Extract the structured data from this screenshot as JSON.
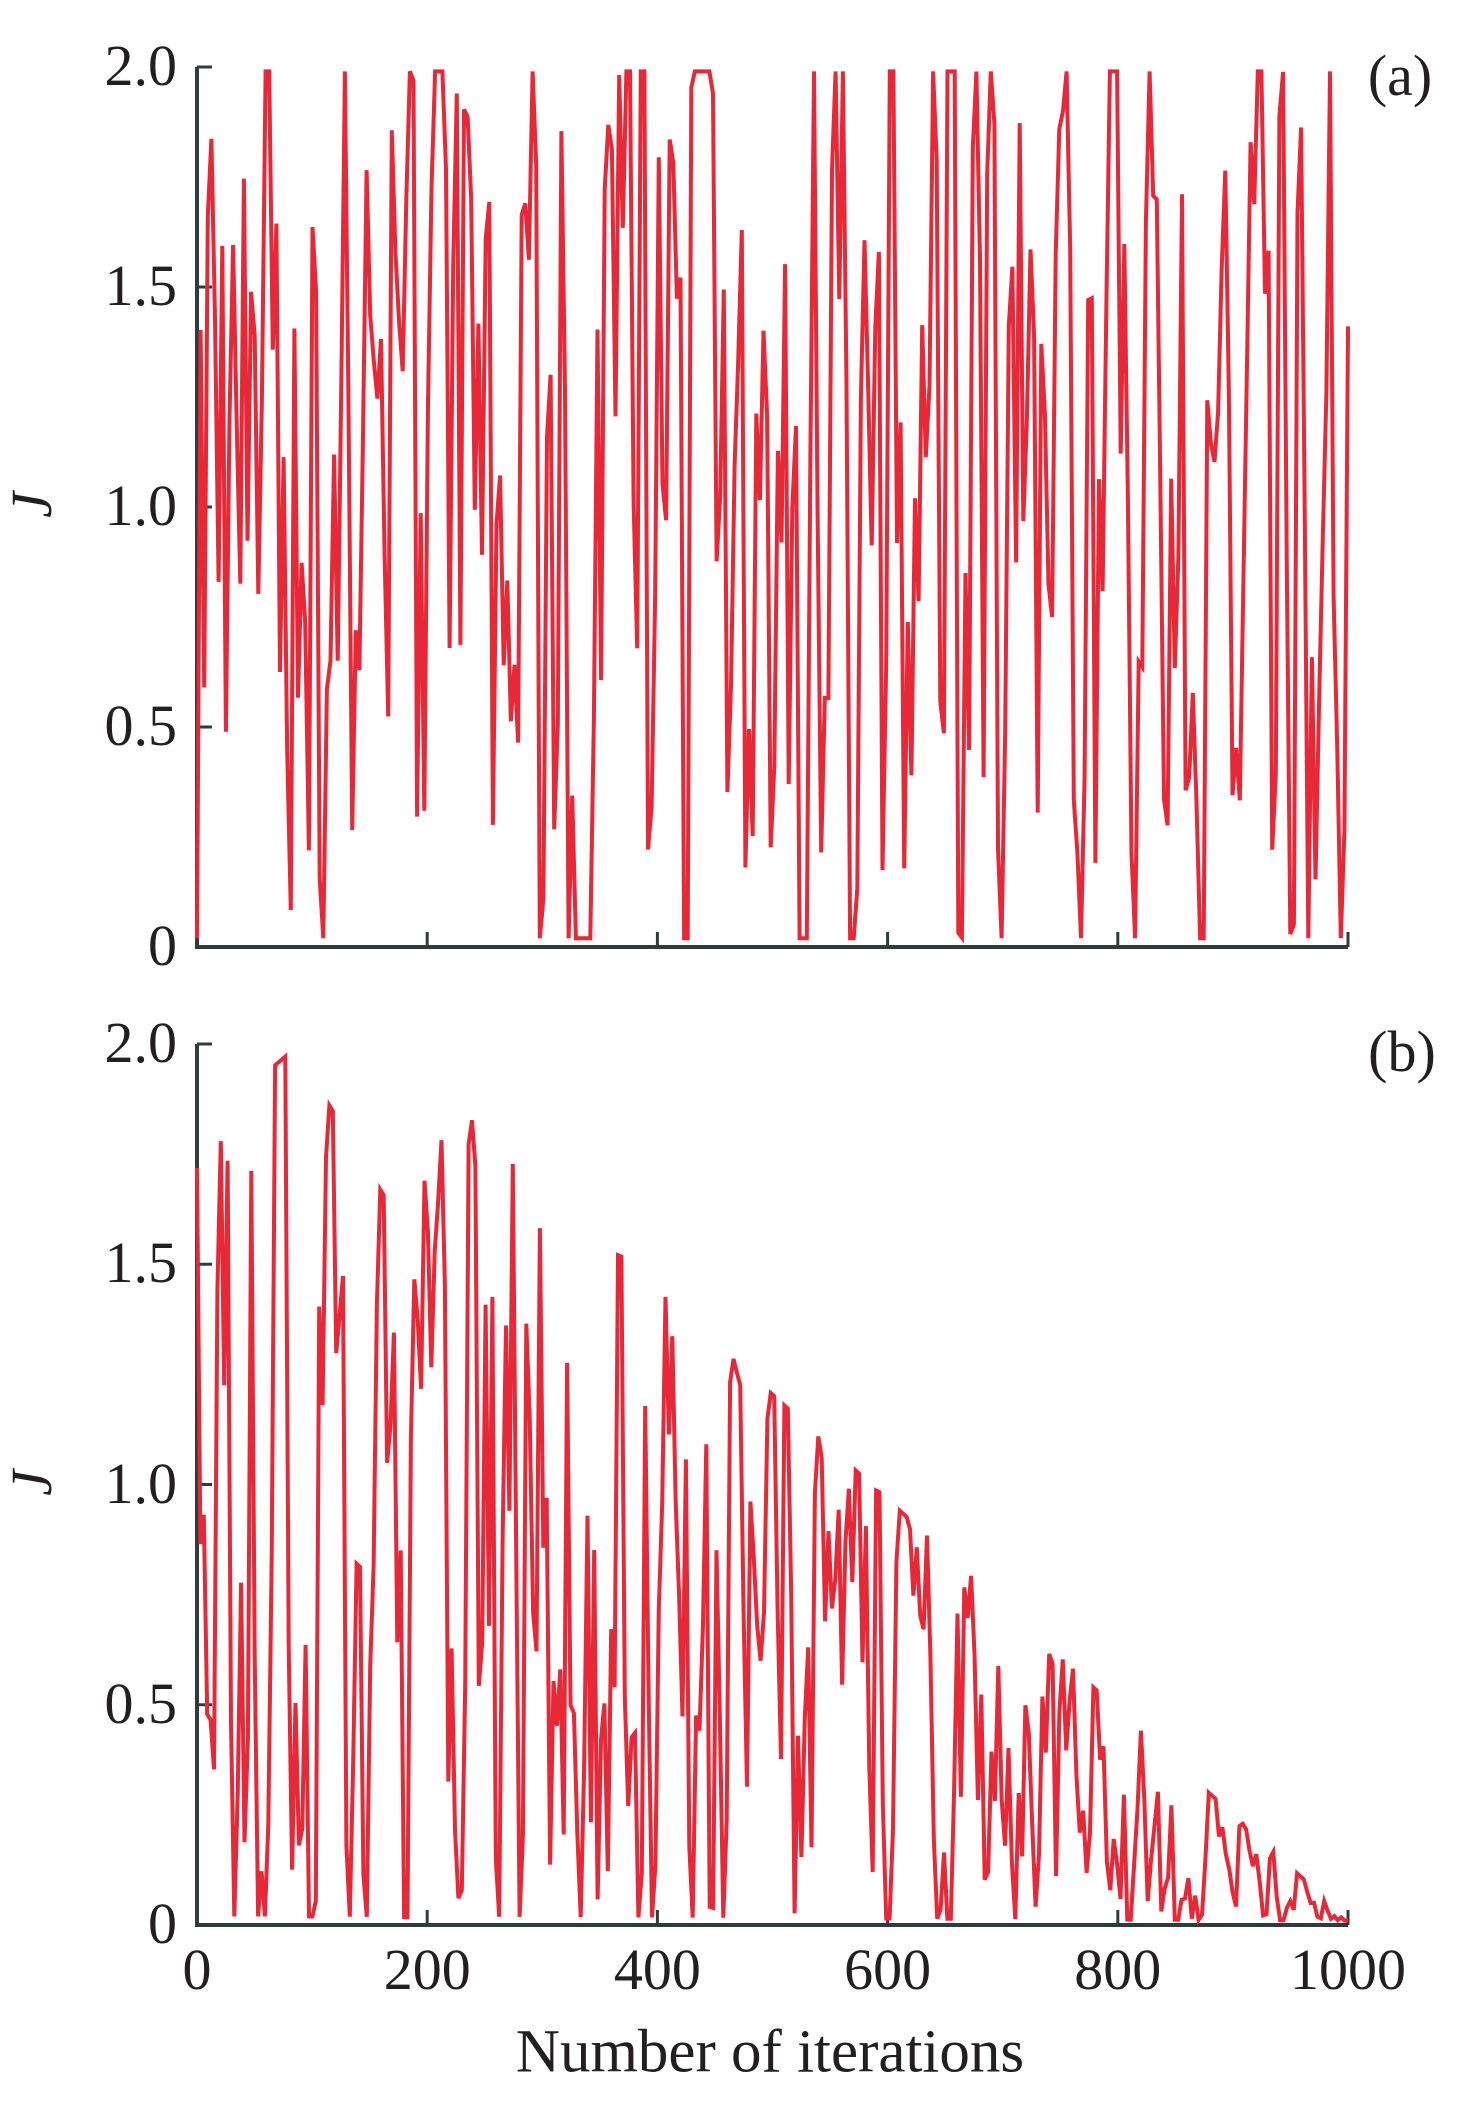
{
  "colors": {
    "line": "#e82737",
    "axis": "#2f3b3e",
    "text": "#231f20",
    "background": "#ffffff"
  },
  "figure": {
    "xlabel": "Number of iterations",
    "panels": [
      {
        "label": "(a)",
        "ylabel": "J"
      },
      {
        "label": "(b)",
        "ylabel": "J"
      }
    ]
  },
  "chart_data": [
    {
      "type": "line",
      "panel": "(a)",
      "title": "",
      "xlabel": "",
      "ylabel": "J",
      "xlim": [
        0,
        1000
      ],
      "ylim": [
        0,
        2.0
      ],
      "x_ticks": [
        0,
        200,
        400,
        600,
        800,
        1000
      ],
      "x_tick_labels": [],
      "y_ticks": [
        2.0,
        1.5,
        1.0,
        0.5,
        0
      ],
      "y_tick_labels": [
        "2.0",
        "1.5",
        "1.0",
        "0.5",
        "0"
      ],
      "grid": false,
      "legend": false,
      "n_points": 1000,
      "description": "Cost J oscillates randomly and uniformly over the full range 0 to 2 for all 1000 iterations with no convergence trend.",
      "series": [
        {
          "name": "J",
          "color": "#e82737",
          "envelope": {
            "type": "piecewise-linear",
            "breakpoints": [
              [
                0,
                1.99
              ],
              [
                1000,
                1.99
              ]
            ],
            "min": 0.01
          },
          "generator": {
            "prng": "mulberry32",
            "seed": 9,
            "points_rendered": 320,
            "smooth": 0.35,
            "contrast": 1.8
          }
        }
      ]
    },
    {
      "type": "line",
      "panel": "(b)",
      "title": "",
      "xlabel": "Number of iterations",
      "ylabel": "J",
      "xlim": [
        0,
        1000
      ],
      "ylim": [
        0,
        2.0
      ],
      "x_ticks": [
        0,
        200,
        400,
        600,
        800,
        1000
      ],
      "x_tick_labels": [
        "0",
        "200",
        "400",
        "600",
        "800",
        "1000"
      ],
      "y_ticks": [
        2.0,
        1.5,
        1.0,
        0.5,
        0
      ],
      "y_tick_labels": [
        "2.0",
        "1.5",
        "1.0",
        "0.5",
        "0"
      ],
      "grid": false,
      "legend": false,
      "n_points": 1000,
      "description": "Cost J oscillates between 0 and an upper envelope that peaks near 2.0 around iteration 90, dips to about 1.6 near iteration 180, recovers to about 1.86 near iteration 225, then decays roughly linearly to 0 at iteration 1000 (convergence).",
      "series": [
        {
          "name": "J",
          "color": "#e82737",
          "envelope": {
            "type": "piecewise-linear",
            "breakpoints": [
              [
                0,
                1.8
              ],
              [
                85,
                1.99
              ],
              [
                180,
                1.58
              ],
              [
                225,
                1.86
              ],
              [
                1000,
                0.012
              ]
            ],
            "min": 0.01
          },
          "generator": {
            "prng": "mulberry32",
            "seed": 20,
            "points_rendered": 340,
            "smooth": 0.35,
            "contrast": 1.8
          }
        }
      ]
    }
  ]
}
